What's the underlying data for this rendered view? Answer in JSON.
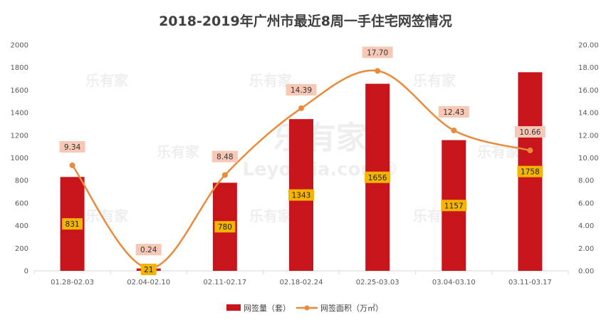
{
  "chart_data": {
    "type": "bar",
    "title": "2018-2019年广州市最近8周一手住宅网签情况",
    "categories": [
      "01.28-02.03",
      "02.04-02.10",
      "02.11-02.17",
      "02.18-02.24",
      "02.25-03.03",
      "03.04-03.10",
      "03.11-03.17"
    ],
    "series": [
      {
        "name": "网签量（套）",
        "type": "bar",
        "axis": "left",
        "color": "#c8141b",
        "label_bg": "#f5b400",
        "values": [
          831,
          21,
          780,
          1343,
          1656,
          1157,
          1758
        ]
      },
      {
        "name": "网签面积（万㎡）",
        "type": "line",
        "axis": "right",
        "color": "#ea8a3c",
        "label_bg": "#f6c8b5",
        "values": [
          9.34,
          0.24,
          8.48,
          14.39,
          17.7,
          12.43,
          10.66
        ],
        "labels": [
          "9.34",
          "0.24",
          "8.48",
          "14.39",
          "17.70",
          "12.43",
          "10.66"
        ]
      }
    ],
    "left_axis": {
      "ylim": [
        0,
        2000
      ],
      "ticks": [
        "0",
        "200",
        "400",
        "600",
        "800",
        "1000",
        "1200",
        "1400",
        "1600",
        "1800",
        "2000"
      ]
    },
    "right_axis": {
      "ylim": [
        0,
        20
      ],
      "ticks": [
        "0.00",
        "2.00",
        "4.00",
        "6.00",
        "8.00",
        "10.00",
        "12.00",
        "14.00",
        "16.00",
        "18.00",
        "20.00"
      ]
    },
    "grid": false,
    "legend": "bottom"
  }
}
